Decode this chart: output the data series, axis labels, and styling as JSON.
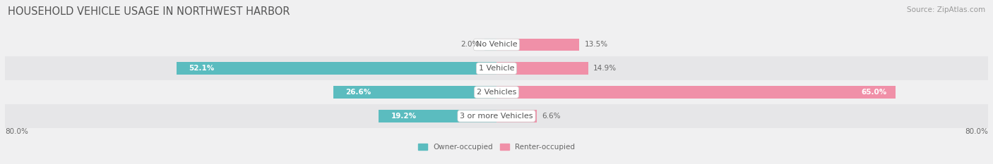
{
  "title": "HOUSEHOLD VEHICLE USAGE IN NORTHWEST HARBOR",
  "source": "Source: ZipAtlas.com",
  "categories": [
    "No Vehicle",
    "1 Vehicle",
    "2 Vehicles",
    "3 or more Vehicles"
  ],
  "owner_values": [
    2.0,
    52.1,
    26.6,
    19.2
  ],
  "renter_values": [
    13.5,
    14.9,
    65.0,
    6.6
  ],
  "owner_color": "#5bbcbf",
  "renter_color": "#f090a8",
  "row_bg_colors": [
    "#f0f0f1",
    "#e6e6e8"
  ],
  "fig_bg_color": "#f0f0f1",
  "axis_min": -80.0,
  "axis_max": 80.0,
  "axis_label_left": "80.0%",
  "axis_label_right": "80.0%",
  "legend_owner": "Owner-occupied",
  "legend_renter": "Renter-occupied",
  "title_fontsize": 10.5,
  "source_fontsize": 7.5,
  "label_fontsize": 7.5,
  "category_fontsize": 8,
  "bar_height": 0.52
}
